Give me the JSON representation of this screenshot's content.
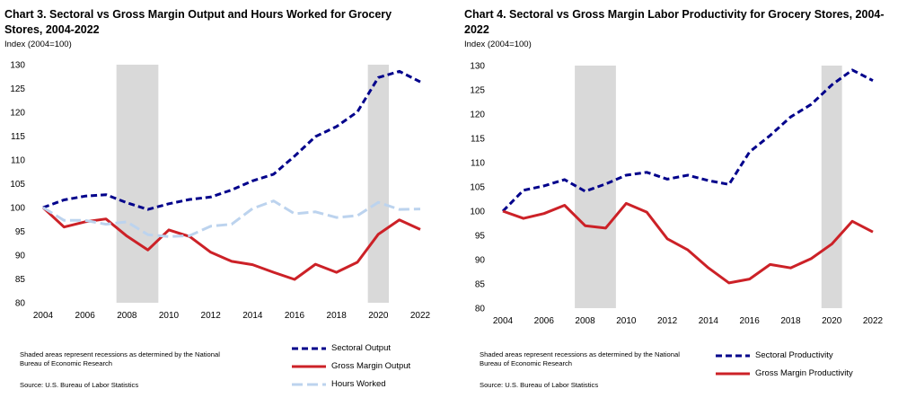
{
  "chart_data": [
    {
      "type": "line",
      "title": "Chart 3. Sectoral vs Gross Margin Output and Hours Worked for Grocery Stores, 2004-2022",
      "ylabel": "Index (2004=100)",
      "xlabel": "",
      "ylim": [
        80,
        130
      ],
      "yticks": [
        80,
        85,
        90,
        95,
        100,
        105,
        110,
        115,
        120,
        125,
        130
      ],
      "xlim": [
        2004,
        2022
      ],
      "xticks": [
        2004,
        2006,
        2008,
        2010,
        2012,
        2014,
        2016,
        2018,
        2020,
        2022
      ],
      "x": [
        2004,
        2005,
        2006,
        2007,
        2008,
        2009,
        2010,
        2011,
        2012,
        2013,
        2014,
        2015,
        2016,
        2017,
        2018,
        2019,
        2020,
        2021,
        2022
      ],
      "recessions": [
        [
          2007.5,
          2009.5
        ],
        [
          2019.5,
          2020.5
        ]
      ],
      "series": [
        {
          "name": "Sectoral Output",
          "color": "#00008b",
          "dash": "dash",
          "values": [
            100,
            101.6,
            102.4,
            102.7,
            101.0,
            99.6,
            100.8,
            101.7,
            102.2,
            103.7,
            105.6,
            107.0,
            110.8,
            114.9,
            117.0,
            120.1,
            127.3,
            128.6,
            126.4
          ]
        },
        {
          "name": "Gross Margin Output",
          "color": "#cc2127",
          "dash": "solid",
          "values": [
            100,
            95.9,
            97.0,
            97.6,
            94.0,
            91.1,
            95.3,
            93.9,
            90.6,
            88.7,
            88.0,
            86.4,
            84.9,
            88.1,
            86.4,
            88.5,
            94.4,
            97.4,
            95.4
          ]
        },
        {
          "name": "Hours Worked",
          "color": "#bcd3ee",
          "dash": "longdash",
          "values": [
            100,
            97.3,
            97.3,
            96.5,
            97.0,
            94.3,
            93.9,
            94.1,
            96.1,
            96.5,
            99.8,
            101.4,
            98.7,
            99.1,
            97.9,
            98.3,
            101.1,
            99.6,
            99.7
          ]
        }
      ]
    },
    {
      "type": "line",
      "title": "Chart 4. Sectoral vs Gross Margin Labor Productivity for Grocery Stores, 2004-2022",
      "ylabel": "Index (2004=100)",
      "xlabel": "",
      "ylim": [
        80,
        130
      ],
      "yticks": [
        80,
        85,
        90,
        95,
        100,
        105,
        110,
        115,
        120,
        125,
        130
      ],
      "xlim": [
        2004,
        2022
      ],
      "xticks": [
        2004,
        2006,
        2008,
        2010,
        2012,
        2014,
        2016,
        2018,
        2020,
        2022
      ],
      "x": [
        2004,
        2005,
        2006,
        2007,
        2008,
        2009,
        2010,
        2011,
        2012,
        2013,
        2014,
        2015,
        2016,
        2017,
        2018,
        2019,
        2020,
        2021,
        2022
      ],
      "recessions": [
        [
          2007.5,
          2009.5
        ],
        [
          2019.5,
          2020.5
        ]
      ],
      "series": [
        {
          "name": "Sectoral Productivity",
          "color": "#00008b",
          "dash": "dash",
          "values": [
            100,
            104.3,
            105.2,
            106.5,
            104.1,
            105.6,
            107.4,
            108.0,
            106.6,
            107.4,
            106.3,
            105.5,
            112.2,
            115.6,
            119.4,
            122.0,
            126.0,
            129.1,
            126.9
          ]
        },
        {
          "name": "Gross Margin Productivity",
          "color": "#cc2127",
          "dash": "solid",
          "values": [
            100,
            98.5,
            99.5,
            101.2,
            97.0,
            96.5,
            101.6,
            99.8,
            94.3,
            92.0,
            88.3,
            85.2,
            86.0,
            89.0,
            88.3,
            90.2,
            93.2,
            97.9,
            95.7
          ]
        }
      ]
    }
  ],
  "notes": {
    "shaded": "Shaded areas represent recessions as determined by the National Bureau of Economic Research",
    "source": "Source: U.S. Bureau of Labor Statistics"
  }
}
